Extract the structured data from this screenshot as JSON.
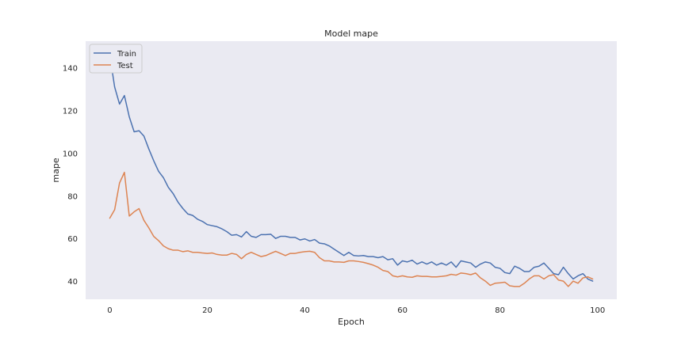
{
  "chart_data": {
    "type": "line",
    "title": "Model mape",
    "xlabel": "Epoch",
    "ylabel": "mape",
    "xlim": [
      -4.95,
      103.95
    ],
    "ylim": [
      31.5,
      152.5
    ],
    "xticks": [
      0,
      20,
      40,
      60,
      80,
      100
    ],
    "yticks": [
      40,
      60,
      80,
      100,
      120,
      140
    ],
    "grid": false,
    "legend_position": "top-left",
    "background": "#eaeaf2",
    "series": [
      {
        "name": "Train",
        "color": "#4c72b0",
        "x": [
          0,
          1,
          2,
          3,
          4,
          5,
          6,
          7,
          8,
          9,
          10,
          11,
          12,
          13,
          14,
          15,
          16,
          17,
          18,
          19,
          20,
          21,
          22,
          23,
          24,
          25,
          26,
          27,
          28,
          29,
          30,
          31,
          32,
          33,
          34,
          35,
          36,
          37,
          38,
          39,
          40,
          41,
          42,
          43,
          44,
          45,
          46,
          47,
          48,
          49,
          50,
          51,
          52,
          53,
          54,
          55,
          56,
          57,
          58,
          59,
          60,
          61,
          62,
          63,
          64,
          65,
          66,
          67,
          68,
          69,
          70,
          71,
          72,
          73,
          74,
          75,
          76,
          77,
          78,
          79,
          80,
          81,
          82,
          83,
          84,
          85,
          86,
          87,
          88,
          89,
          90,
          91,
          92,
          93,
          94,
          95,
          96,
          97,
          98,
          99
        ],
        "values": [
          146,
          131,
          123,
          127,
          117,
          110,
          110.5,
          108,
          102,
          96.5,
          91.5,
          88.5,
          84,
          81,
          77,
          74,
          71.5,
          70.8,
          69,
          68,
          66.5,
          66,
          65.5,
          64.5,
          63.2,
          61.5,
          61.8,
          60.7,
          63.2,
          61,
          60.5,
          61.8,
          61.8,
          62,
          60,
          61,
          61,
          60.5,
          60.5,
          59.3,
          59.8,
          58.8,
          59.5,
          57.8,
          57.5,
          56.5,
          55,
          53.5,
          52,
          53.5,
          52,
          51.8,
          52,
          51.5,
          51.5,
          51,
          51.5,
          50,
          50.5,
          47.5,
          49.5,
          49,
          49.8,
          48,
          49,
          48,
          49,
          47.5,
          48.5,
          47.5,
          49,
          46.5,
          49.5,
          49,
          48.5,
          46.5,
          48,
          49,
          48.5,
          46.5,
          46,
          44,
          43.5,
          47,
          46,
          44.5,
          44.5,
          46.5,
          47,
          48.5,
          46,
          43.5,
          43,
          46.5,
          43.5,
          41,
          42.5,
          43.5,
          41,
          40
        ]
      },
      {
        "name": "Test",
        "color": "#dd8452",
        "x": [
          0,
          1,
          2,
          3,
          4,
          5,
          6,
          7,
          8,
          9,
          10,
          11,
          12,
          13,
          14,
          15,
          16,
          17,
          18,
          19,
          20,
          21,
          22,
          23,
          24,
          25,
          26,
          27,
          28,
          29,
          30,
          31,
          32,
          33,
          34,
          35,
          36,
          37,
          38,
          39,
          40,
          41,
          42,
          43,
          44,
          45,
          46,
          47,
          48,
          49,
          50,
          51,
          52,
          53,
          54,
          55,
          56,
          57,
          58,
          59,
          60,
          61,
          62,
          63,
          64,
          65,
          66,
          67,
          68,
          69,
          70,
          71,
          72,
          73,
          74,
          75,
          76,
          77,
          78,
          79,
          80,
          81,
          82,
          83,
          84,
          85,
          86,
          87,
          88,
          89,
          90,
          91,
          92,
          93,
          94,
          95,
          96,
          97,
          98,
          99
        ],
        "values": [
          69.5,
          73.5,
          86,
          91,
          70.5,
          72.5,
          74,
          68.5,
          65,
          61,
          59,
          56.5,
          55.2,
          54.5,
          54.5,
          53.8,
          54.2,
          53.5,
          53.5,
          53.2,
          53,
          53.2,
          52.5,
          52.2,
          52.2,
          53,
          52.5,
          50.5,
          52.5,
          53.5,
          52.5,
          51.5,
          52,
          53,
          54,
          53,
          52,
          53,
          53,
          53.5,
          53.8,
          54,
          53.5,
          51,
          49.5,
          49.5,
          49,
          49,
          48.8,
          49.5,
          49.5,
          49.2,
          48.8,
          48.2,
          47.5,
          46.5,
          45,
          44.5,
          42.5,
          42,
          42.5,
          42,
          41.8,
          42.5,
          42.2,
          42.2,
          42,
          42,
          42.2,
          42.5,
          43.2,
          42.8,
          43.8,
          43.5,
          43,
          43.8,
          41.5,
          40,
          38,
          39,
          39.2,
          39.5,
          37.8,
          37.5,
          37.5,
          39,
          41,
          42.5,
          42.5,
          41,
          42.5,
          43,
          40.5,
          40,
          37.5,
          40,
          39,
          41.5,
          42,
          41
        ]
      }
    ]
  }
}
